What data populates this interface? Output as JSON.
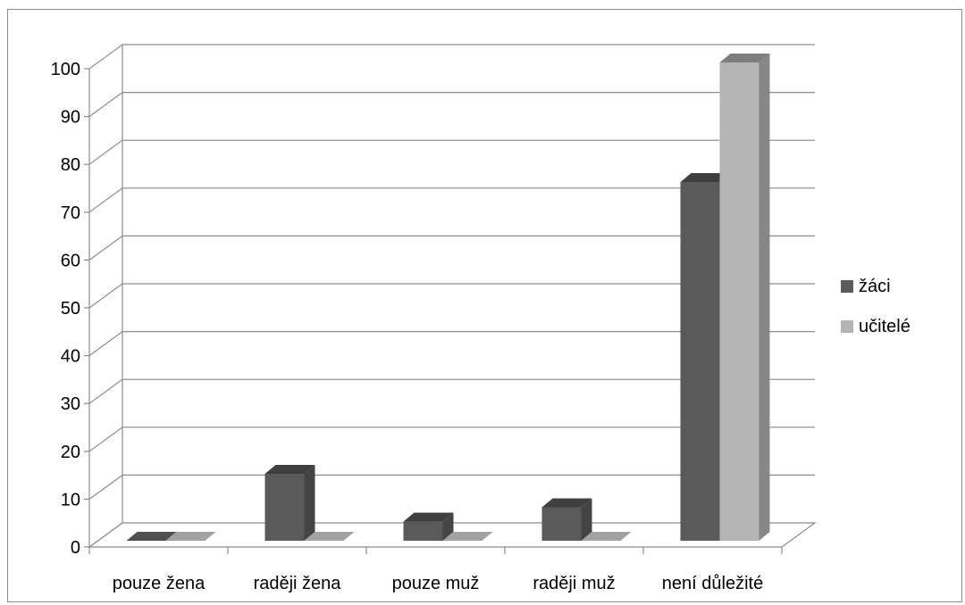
{
  "chart_data": {
    "type": "bar",
    "three_d": true,
    "categories": [
      "pouze žena",
      "raději žena",
      "pouze muž",
      "raději muž",
      "není důležité"
    ],
    "series": [
      {
        "name": "žáci",
        "values": [
          0,
          14,
          4,
          7,
          75
        ],
        "color": "#5a5a5a"
      },
      {
        "name": "učitelé",
        "values": [
          0,
          0,
          0,
          0,
          100
        ],
        "color": "#b4b4b4"
      }
    ],
    "y_ticks": [
      "0",
      "10",
      "20",
      "30",
      "40",
      "50",
      "60",
      "70",
      "80",
      "90",
      "100"
    ],
    "ylim": [
      0,
      100
    ],
    "grid": true,
    "legend_position": "right"
  }
}
